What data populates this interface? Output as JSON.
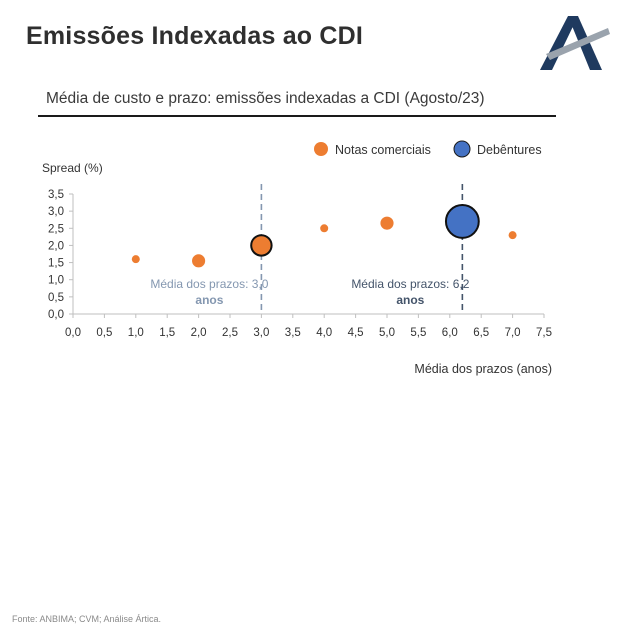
{
  "page": {
    "title": "Emissões Indexadas ao CDI",
    "source": "Fonte: ANBIMA; CVM; Análise Ártica."
  },
  "chart_data": {
    "type": "scatter",
    "title": "Média de custo e prazo: emissões indexadas a CDI (Agosto/23)",
    "xlabel": "Média dos prazos (anos)",
    "ylabel": "Spread (%)",
    "xlim": [
      0,
      7.5
    ],
    "ylim": [
      0,
      3.5
    ],
    "x_ticks": [
      "0,0",
      "0,5",
      "1,0",
      "1,5",
      "2,0",
      "2,5",
      "3,0",
      "3,5",
      "4,0",
      "4,5",
      "5,0",
      "5,5",
      "6,0",
      "6,5",
      "7,0",
      "7,5"
    ],
    "y_ticks": [
      "0,0",
      "0,5",
      "1,0",
      "1,5",
      "2,0",
      "2,5",
      "3,0",
      "3,5"
    ],
    "legend_position": "top-right",
    "series": [
      {
        "name": "Notas comerciais",
        "color": "#ed7d31",
        "points": [
          {
            "x": 1.0,
            "y": 1.6,
            "size": 1
          },
          {
            "x": 2.0,
            "y": 1.55,
            "size": 2
          },
          {
            "x": 3.0,
            "y": 2.0,
            "size": 4,
            "highlight": true
          },
          {
            "x": 4.0,
            "y": 2.5,
            "size": 1
          },
          {
            "x": 5.0,
            "y": 2.65,
            "size": 2
          },
          {
            "x": 7.0,
            "y": 2.3,
            "size": 1
          }
        ]
      },
      {
        "name": "Debêntures",
        "color": "#4472c4",
        "points": [
          {
            "x": 6.2,
            "y": 2.7,
            "size": 9,
            "highlight": true
          }
        ]
      }
    ],
    "reference_lines": [
      {
        "x": 3.0,
        "color": "#8497b0",
        "label_line1": "Média dos prazos: 3,0",
        "label_line2": "anos"
      },
      {
        "x": 6.2,
        "color": "#44546a",
        "label_line1": "Média dos prazos: 6,2",
        "label_line2": "anos"
      }
    ]
  }
}
